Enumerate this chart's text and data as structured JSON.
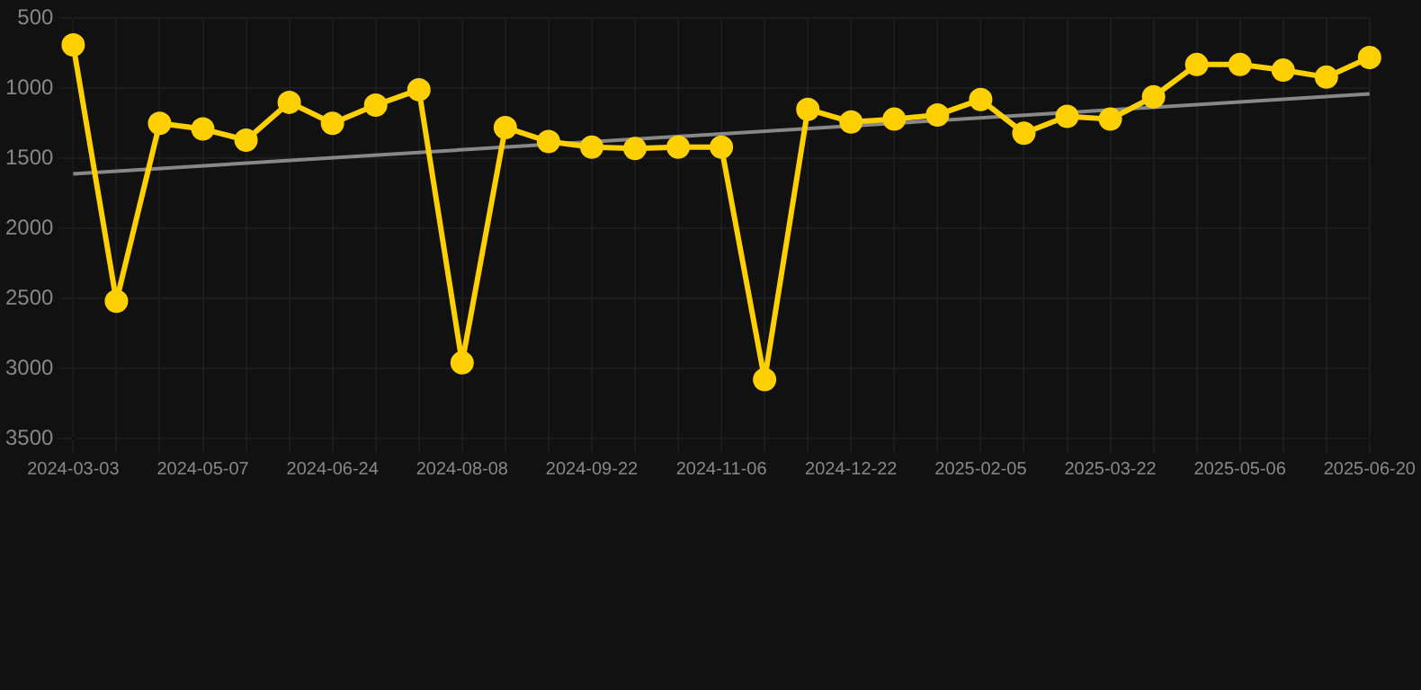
{
  "chart_data": {
    "type": "line",
    "categories": [
      "2024-03-03",
      null,
      null,
      "2024-05-07",
      null,
      null,
      "2024-06-24",
      null,
      null,
      "2024-08-08",
      null,
      null,
      "2024-09-22",
      null,
      null,
      "2024-11-06",
      null,
      null,
      "2024-12-22",
      null,
      null,
      "2025-02-05",
      null,
      null,
      "2025-03-22",
      null,
      null,
      "2025-05-06",
      null,
      null,
      "2025-06-20"
    ],
    "series": [
      {
        "color": "#ffd000",
        "marker": "circle",
        "values": [
          690,
          2520,
          1250,
          1290,
          1370,
          1100,
          1250,
          1120,
          1010,
          2960,
          1280,
          1380,
          1420,
          1430,
          1420,
          1420,
          3080,
          1150,
          1240,
          1220,
          1190,
          1080,
          1320,
          1200,
          1220,
          1060,
          830,
          830,
          870,
          920,
          780
        ]
      },
      {
        "type": "line",
        "color": "#888888",
        "marker": "none",
        "values": [
          1610,
          null,
          null,
          null,
          null,
          null,
          null,
          null,
          null,
          null,
          null,
          null,
          null,
          null,
          null,
          null,
          null,
          null,
          null,
          null,
          null,
          null,
          null,
          null,
          null,
          null,
          null,
          null,
          null,
          null,
          1040
        ]
      }
    ],
    "ylim": [
      3500,
      500
    ],
    "yticks": [
      500,
      1000,
      1500,
      2000,
      2500,
      3000,
      3500
    ],
    "grid": true,
    "legend": false
  }
}
